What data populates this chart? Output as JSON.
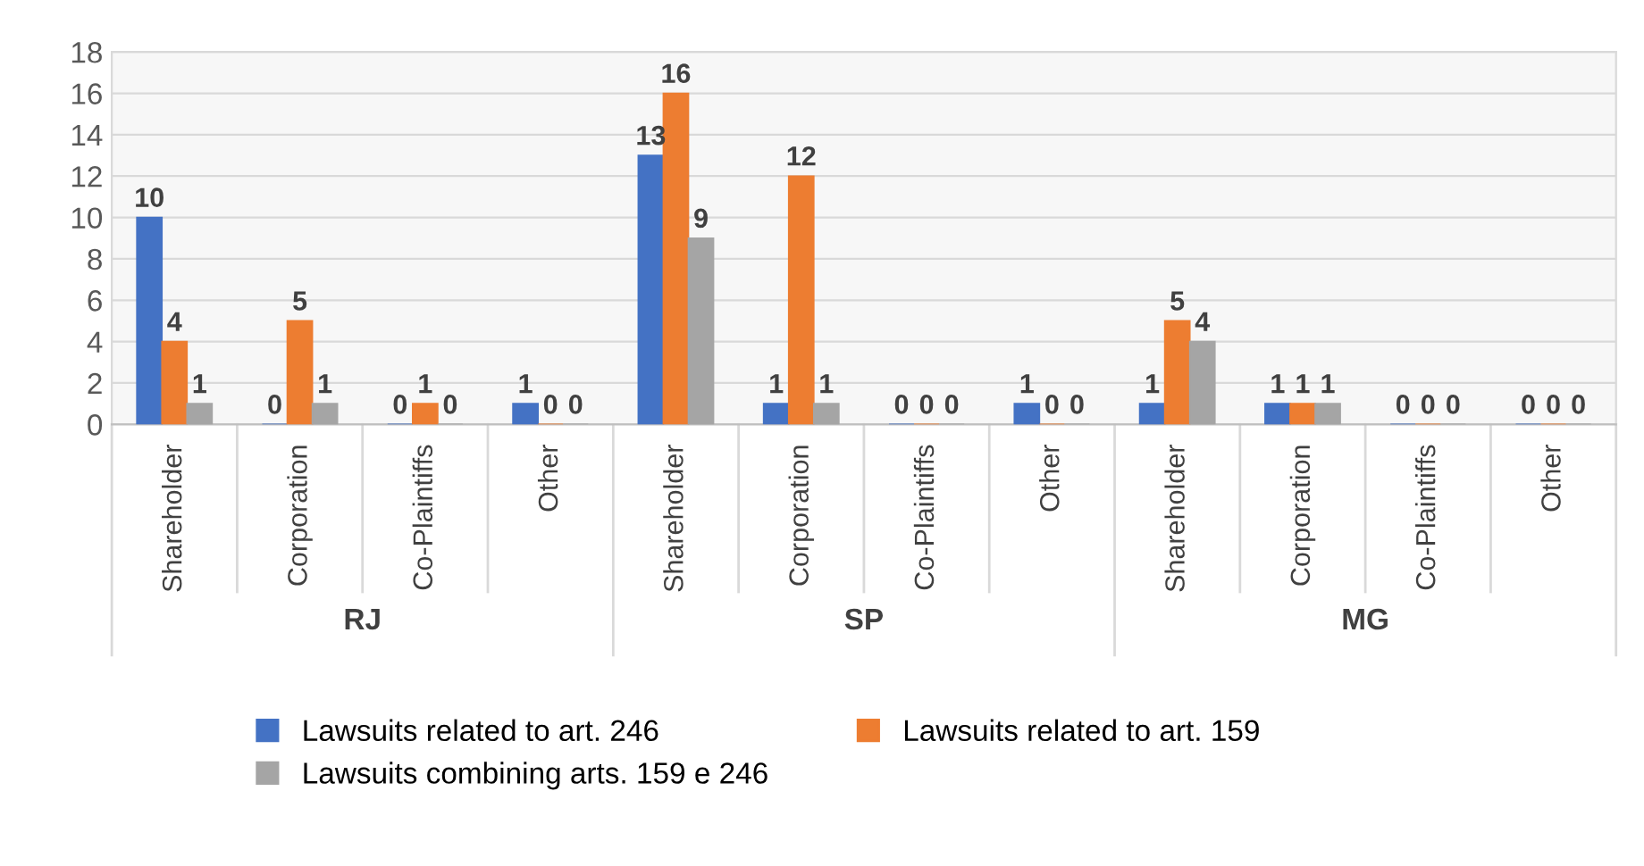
{
  "chart_data": {
    "type": "bar",
    "categories": [
      "Shareholder",
      "Corporation",
      "Co-Plaintiffs",
      "Other",
      "Shareholder",
      "Corporation",
      "Co-Plaintiffs",
      "Other",
      "Shareholder",
      "Corporation",
      "Co-Plaintiffs",
      "Other"
    ],
    "annotations": [
      "RJ",
      "SP",
      "MG"
    ],
    "series": [
      {
        "name": "Lawsuits related to art. 246",
        "color": "#4472c4",
        "values": [
          10,
          0,
          0,
          1,
          13,
          1,
          0,
          1,
          1,
          1,
          0,
          0
        ]
      },
      {
        "name": "Lawsuits related to art. 159",
        "color": "#ed7d31",
        "values": [
          4,
          5,
          1,
          0,
          16,
          12,
          0,
          0,
          5,
          1,
          0,
          0
        ]
      },
      {
        "name": "Lawsuits combining arts. 159 e 246",
        "color": "#a5a5a5",
        "values": [
          1,
          1,
          0,
          0,
          9,
          1,
          0,
          0,
          4,
          1,
          0,
          0
        ]
      }
    ],
    "ylim": [
      0,
      18
    ],
    "yticks": [
      0,
      2,
      4,
      6,
      8,
      10,
      12,
      14,
      16,
      18
    ],
    "grid": "y",
    "data_labels": true,
    "legend": "bottom"
  }
}
